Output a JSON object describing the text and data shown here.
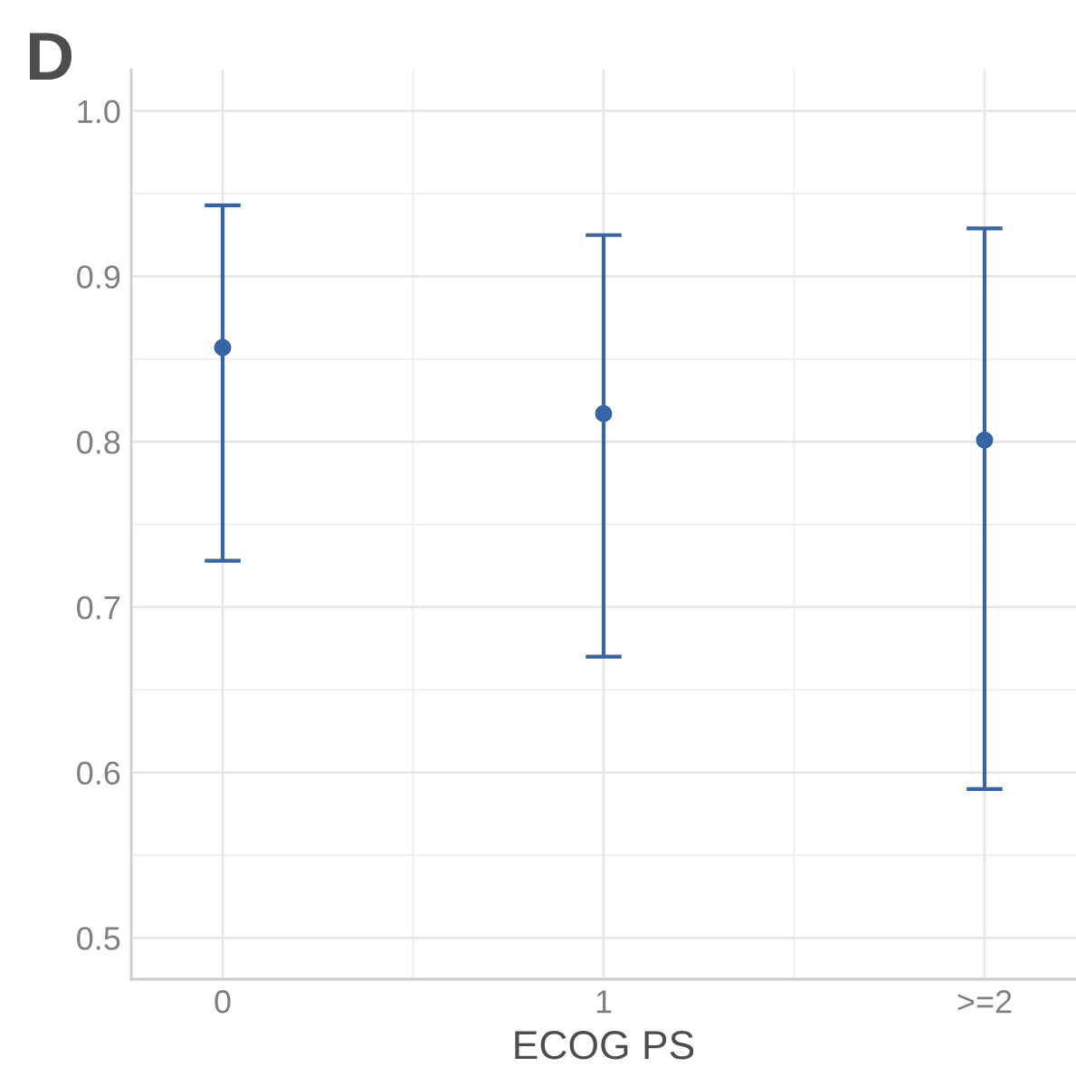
{
  "chart_data": {
    "type": "scatter",
    "xlabel": "ECOG PS",
    "categories": [
      "0",
      "1",
      ">=2"
    ],
    "color": "#3565a5",
    "values": [
      0.857,
      0.817,
      0.801
    ],
    "errors": [
      [
        0.728,
        0.943
      ],
      [
        0.67,
        0.925
      ],
      [
        0.59,
        0.929
      ]
    ],
    "ylim": [
      0.475,
      1.025
    ],
    "yticks": [
      {
        "value": 0.5,
        "label": "0.5"
      },
      {
        "value": 0.6,
        "label": "0.6"
      },
      {
        "value": 0.7,
        "label": "0.7"
      },
      {
        "value": 0.8,
        "label": "0.8"
      },
      {
        "value": 0.9,
        "label": "0.9"
      },
      {
        "value": 1.0,
        "label": "1.0"
      }
    ],
    "grid": true,
    "marker": "circle",
    "annotations": [
      "D"
    ]
  }
}
